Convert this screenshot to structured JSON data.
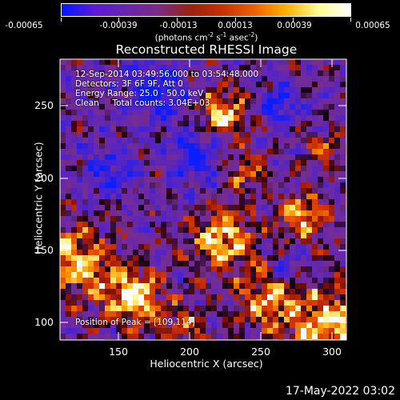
{
  "colorbar": {
    "tick_labels": [
      "-0.00065",
      "-0.00039",
      "-0.00013",
      "0.00013",
      "0.00039",
      "0.00065"
    ],
    "units_prefix": "(photons cm",
    "units_exp1": "-2",
    "units_mid": " s",
    "units_exp2": "-1",
    "units_mid2": " asec",
    "units_exp3": "-2",
    "units_suffix": ")",
    "colors": [
      "#0018ff",
      "#5a1ad6",
      "#6a24b0",
      "#7d2a88",
      "#9a2010",
      "#c83000",
      "#ef6000",
      "#ffb000",
      "#ffff90",
      "#ffffff"
    ]
  },
  "plot": {
    "title": "Reconstructed RHESSI Image",
    "info_line1": "12-Sep-2014 03:49:56.000 to 03:54:48.000",
    "info_line2": "Detectors: 3F 6F 9F, Att 0",
    "info_line3": "Energy Range: 25.0 - 50.0 keV",
    "info_line4": "Clean     Total counts: 3.04E+03",
    "peak_text": "Position of Peak = [109,114]"
  },
  "axes": {
    "xlabel": "Heliocentric X (arcsec)",
    "ylabel": "Heliocentric Y (arcsec)",
    "x_ticks": [
      "150",
      "200",
      "250",
      "300"
    ],
    "y_ticks": [
      "100",
      "150",
      "200",
      "250"
    ]
  },
  "footer": {
    "date": "17-May-2022 03:02"
  }
}
